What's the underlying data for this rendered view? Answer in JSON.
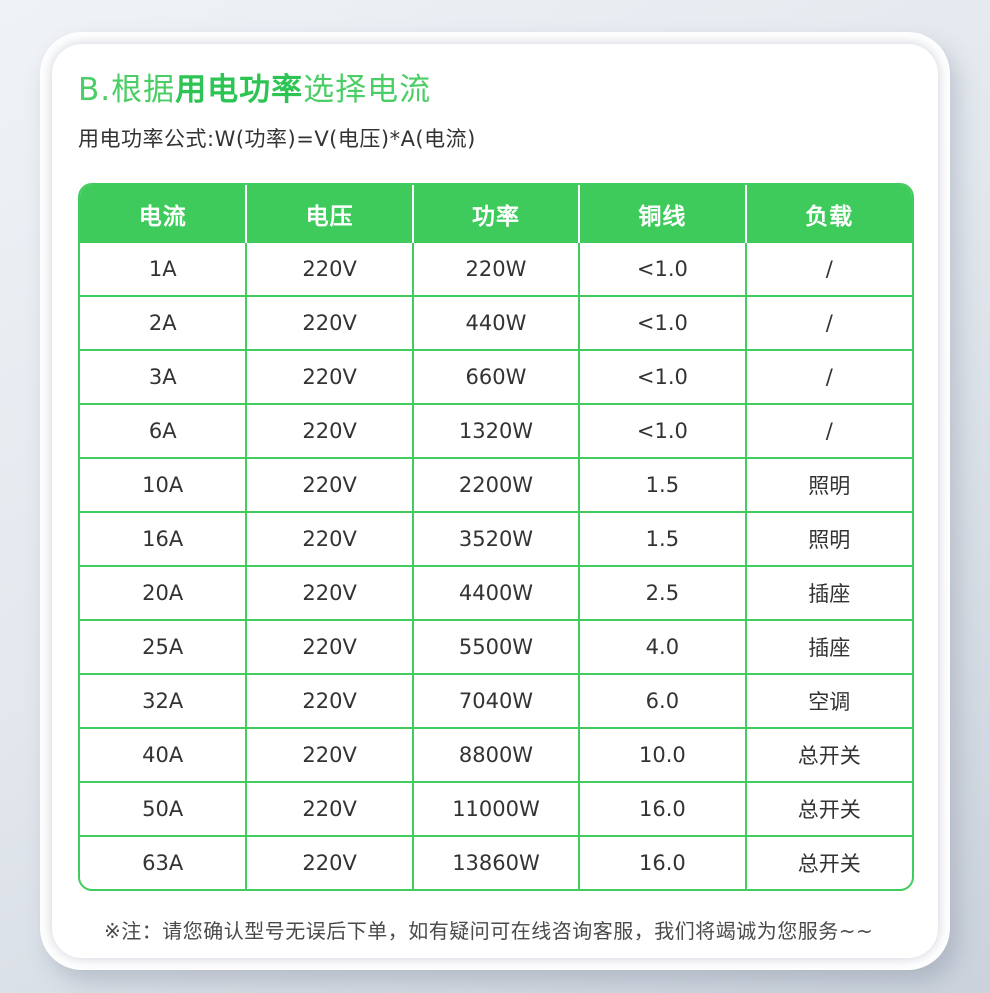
{
  "title": {
    "prefix": "B.根据",
    "bold": "用电功率",
    "suffix": "选择电流"
  },
  "subtitle": "用电功率公式:W(功率)=V(电压)*A(电流)",
  "note": "※注：请您确认型号无误后下单，如有疑问可在线咨询客服，我们将竭诚为您服务~~",
  "colors": {
    "header_green": "#3ecb5c",
    "border_green": "#42cb5f",
    "title_green": "#4bce65",
    "title_green_bold": "#2cc553",
    "cell_text": "#333333",
    "card_background": "#ffffff",
    "page_background_top": "#eff2f6",
    "page_background_bottom": "#cbd2dc"
  },
  "table": {
    "columns": [
      "电流",
      "电压",
      "功率",
      "铜线",
      "负载"
    ],
    "rows": [
      [
        "1A",
        "220V",
        "220W",
        "<1.0",
        "/"
      ],
      [
        "2A",
        "220V",
        "440W",
        "<1.0",
        "/"
      ],
      [
        "3A",
        "220V",
        "660W",
        "<1.0",
        "/"
      ],
      [
        "6A",
        "220V",
        "1320W",
        "<1.0",
        "/"
      ],
      [
        "10A",
        "220V",
        "2200W",
        "1.5",
        "照明"
      ],
      [
        "16A",
        "220V",
        "3520W",
        "1.5",
        "照明"
      ],
      [
        "20A",
        "220V",
        "4400W",
        "2.5",
        "插座"
      ],
      [
        "25A",
        "220V",
        "5500W",
        "4.0",
        "插座"
      ],
      [
        "32A",
        "220V",
        "7040W",
        "6.0",
        "空调"
      ],
      [
        "40A",
        "220V",
        "8800W",
        "10.0",
        "总开关"
      ],
      [
        "50A",
        "220V",
        "11000W",
        "16.0",
        "总开关"
      ],
      [
        "63A",
        "220V",
        "13860W",
        "16.0",
        "总开关"
      ]
    ]
  }
}
